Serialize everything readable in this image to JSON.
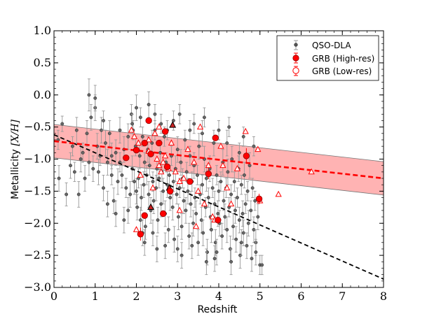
{
  "chart_data": {
    "type": "scatter",
    "xlabel": "Redshift",
    "ylabel_prefix": "Metallicity ",
    "ylabel_math": "[X/H]",
    "xlim": [
      0,
      8
    ],
    "ylim": [
      -3.0,
      1.0
    ],
    "xticks": [
      "0",
      "1",
      "2",
      "3",
      "4",
      "5",
      "6",
      "7",
      "8"
    ],
    "xtick_values": [
      0,
      1,
      2,
      3,
      4,
      5,
      6,
      7,
      8
    ],
    "yticks": [
      "1.0",
      "0.5",
      "0.0",
      "−0.5",
      "−1.0",
      "−1.5",
      "−2.0",
      "−2.5",
      "−3.0"
    ],
    "ytick_values": [
      1.0,
      0.5,
      0.0,
      -0.5,
      -1.0,
      -1.5,
      -2.0,
      -2.5,
      -3.0
    ],
    "legend": {
      "position": "top-right",
      "entries": [
        "QSO-DLA",
        "GRB (High-res)",
        "GRB (Low-res)"
      ]
    },
    "colors": {
      "qso": "#444444",
      "qso_err": "#999999",
      "grb": "#ff0000",
      "band": "#ff9999",
      "qso_fit": "#000000",
      "grb_fit": "#ff0000"
    },
    "grb_fit": {
      "x": [
        0,
        8
      ],
      "y": [
        -0.72,
        -1.3
      ],
      "band_halfwidth": 0.26
    },
    "qso_fit": {
      "x": [
        0,
        8
      ],
      "y": [
        -0.62,
        -2.87
      ]
    },
    "qso_dla": [
      [
        0.1,
        -0.7,
        0.15
      ],
      [
        0.12,
        -1.3,
        0.2
      ],
      [
        0.2,
        -0.45,
        0.12
      ],
      [
        0.3,
        -1.55,
        0.18
      ],
      [
        0.4,
        -1.1,
        0.2
      ],
      [
        0.45,
        -0.8,
        0.15
      ],
      [
        0.5,
        -1.2,
        0.15
      ],
      [
        0.55,
        -0.55,
        0.2
      ],
      [
        0.6,
        -1.55,
        0.2
      ],
      [
        0.65,
        -1.0,
        0.2
      ],
      [
        0.7,
        -0.9,
        0.15
      ],
      [
        0.75,
        -1.3,
        0.2
      ],
      [
        0.8,
        -0.6,
        0.2
      ],
      [
        0.85,
        -1.05,
        0.2
      ],
      [
        0.9,
        -0.35,
        0.2
      ],
      [
        0.95,
        -1.15,
        0.2
      ],
      [
        1.0,
        -0.2,
        0.2
      ],
      [
        1.05,
        -0.8,
        0.2
      ],
      [
        1.08,
        -1.2,
        0.2
      ],
      [
        1.12,
        -0.95,
        0.15
      ],
      [
        1.15,
        -0.55,
        0.2
      ],
      [
        1.2,
        -0.4,
        0.15
      ],
      [
        1.25,
        -0.75,
        0.2
      ],
      [
        1.3,
        -1.05,
        0.2
      ],
      [
        1.35,
        -0.6,
        0.2
      ],
      [
        1.4,
        -1.25,
        0.15
      ],
      [
        1.45,
        -1.65,
        0.2
      ],
      [
        1.5,
        -0.9,
        0.2
      ],
      [
        1.55,
        -1.35,
        0.2
      ],
      [
        1.6,
        -1.05,
        0.15
      ],
      [
        1.65,
        -1.25,
        0.2
      ],
      [
        1.7,
        -0.85,
        0.2
      ],
      [
        1.75,
        -1.45,
        0.15
      ],
      [
        1.8,
        -0.65,
        0.2
      ],
      [
        1.85,
        -1.55,
        0.2
      ],
      [
        1.88,
        -0.3,
        0.15
      ],
      [
        1.9,
        -1.15,
        0.2
      ],
      [
        1.92,
        -0.55,
        0.15
      ],
      [
        1.95,
        -1.35,
        0.2
      ],
      [
        1.98,
        -0.8,
        0.15
      ],
      [
        2.0,
        -1.5,
        0.2
      ],
      [
        2.02,
        -1.75,
        0.2
      ],
      [
        2.05,
        -1.3,
        0.15
      ],
      [
        2.08,
        -0.95,
        0.2
      ],
      [
        2.1,
        -1.95,
        0.2
      ],
      [
        2.12,
        -1.6,
        0.2
      ],
      [
        2.15,
        -0.65,
        0.15
      ],
      [
        2.18,
        -1.4,
        0.2
      ],
      [
        2.2,
        -1.05,
        0.15
      ],
      [
        2.22,
        -2.05,
        0.2
      ],
      [
        2.25,
        -1.25,
        0.15
      ],
      [
        2.28,
        -0.85,
        0.2
      ],
      [
        2.3,
        -1.55,
        0.2
      ],
      [
        2.32,
        -1.1,
        0.15
      ],
      [
        2.35,
        -1.8,
        0.2
      ],
      [
        2.38,
        -0.75,
        0.2
      ],
      [
        2.4,
        -1.35,
        0.15
      ],
      [
        2.42,
        -1.65,
        0.2
      ],
      [
        2.45,
        -0.55,
        0.15
      ],
      [
        2.48,
        -1.45,
        0.2
      ],
      [
        2.5,
        -1.15,
        0.15
      ],
      [
        2.52,
        -1.95,
        0.2
      ],
      [
        2.55,
        -1.3,
        0.15
      ],
      [
        2.58,
        -0.9,
        0.2
      ],
      [
        2.6,
        -1.7,
        0.2
      ],
      [
        2.62,
        -1.2,
        0.15
      ],
      [
        2.65,
        -1.5,
        0.2
      ],
      [
        2.68,
        -0.65,
        0.15
      ],
      [
        2.7,
        -1.85,
        0.2
      ],
      [
        2.72,
        -1.05,
        0.15
      ],
      [
        2.75,
        -1.4,
        0.2
      ],
      [
        2.78,
        -2.1,
        0.2
      ],
      [
        2.8,
        -1.25,
        0.15
      ],
      [
        2.82,
        -1.6,
        0.2
      ],
      [
        2.85,
        -0.95,
        0.15
      ],
      [
        2.88,
        -1.75,
        0.2
      ],
      [
        2.9,
        -1.35,
        0.15
      ],
      [
        2.92,
        -2.25,
        0.2
      ],
      [
        2.95,
        -1.15,
        0.2
      ],
      [
        2.98,
        -1.55,
        0.15
      ],
      [
        3.0,
        -0.85,
        0.2
      ],
      [
        3.02,
        -1.9,
        0.2
      ],
      [
        3.05,
        -1.45,
        0.15
      ],
      [
        3.08,
        -1.05,
        0.2
      ],
      [
        3.1,
        -2.05,
        0.2
      ],
      [
        3.12,
        -1.3,
        0.15
      ],
      [
        3.15,
        -1.65,
        0.2
      ],
      [
        3.18,
        -0.7,
        0.15
      ],
      [
        3.2,
        -1.8,
        0.2
      ],
      [
        3.22,
        -1.2,
        0.15
      ],
      [
        3.25,
        -1.5,
        0.2
      ],
      [
        3.28,
        -2.2,
        0.2
      ],
      [
        3.3,
        -0.95,
        0.15
      ],
      [
        3.32,
        -1.7,
        0.2
      ],
      [
        3.35,
        -1.35,
        0.15
      ],
      [
        3.38,
        -2.0,
        0.2
      ],
      [
        3.4,
        -1.1,
        0.2
      ],
      [
        3.42,
        -1.6,
        0.15
      ],
      [
        3.45,
        -1.85,
        0.2
      ],
      [
        3.48,
        -1.25,
        0.15
      ],
      [
        3.5,
        -2.3,
        0.2
      ],
      [
        3.52,
        -0.8,
        0.2
      ],
      [
        3.55,
        -1.55,
        0.15
      ],
      [
        3.58,
        -1.95,
        0.2
      ],
      [
        3.6,
        -1.4,
        0.15
      ],
      [
        3.62,
        -2.15,
        0.2
      ],
      [
        3.65,
        -1.0,
        0.2
      ],
      [
        3.68,
        -1.75,
        0.15
      ],
      [
        3.7,
        -1.3,
        0.2
      ],
      [
        3.72,
        -2.45,
        0.2
      ],
      [
        3.75,
        -1.6,
        0.15
      ],
      [
        3.78,
        -1.15,
        0.2
      ],
      [
        3.8,
        -1.9,
        0.2
      ],
      [
        3.82,
        -2.1,
        0.2
      ],
      [
        3.85,
        -1.45,
        0.15
      ],
      [
        3.88,
        -0.75,
        0.2
      ],
      [
        3.9,
        -1.7,
        0.2
      ],
      [
        3.92,
        -2.3,
        0.2
      ],
      [
        3.95,
        -1.25,
        0.15
      ],
      [
        3.98,
        -1.85,
        0.2
      ],
      [
        4.0,
        -1.5,
        0.15
      ],
      [
        4.02,
        -2.0,
        0.2
      ],
      [
        4.05,
        -1.35,
        0.15
      ],
      [
        4.08,
        -2.2,
        0.2
      ],
      [
        4.1,
        -1.05,
        0.2
      ],
      [
        4.12,
        -1.65,
        0.15
      ],
      [
        4.15,
        -1.9,
        0.2
      ],
      [
        4.18,
        -1.45,
        0.15
      ],
      [
        4.2,
        -2.1,
        0.2
      ],
      [
        4.22,
        -1.2,
        0.2
      ],
      [
        4.25,
        -1.75,
        0.15
      ],
      [
        4.28,
        -2.4,
        0.2
      ],
      [
        4.3,
        -1.55,
        0.15
      ],
      [
        4.32,
        -1.0,
        0.2
      ],
      [
        4.35,
        -2.05,
        0.2
      ],
      [
        4.38,
        -1.35,
        0.15
      ],
      [
        4.4,
        -1.8,
        0.2
      ],
      [
        4.42,
        -2.25,
        0.2
      ],
      [
        4.45,
        -1.6,
        0.15
      ],
      [
        4.48,
        -1.15,
        0.2
      ],
      [
        4.5,
        -1.95,
        0.2
      ],
      [
        4.52,
        -2.5,
        0.2
      ],
      [
        4.55,
        -1.4,
        0.15
      ],
      [
        4.58,
        -1.85,
        0.2
      ],
      [
        4.6,
        -2.15,
        0.2
      ],
      [
        4.62,
        -1.25,
        0.2
      ],
      [
        4.65,
        -1.7,
        0.15
      ],
      [
        4.68,
        -2.35,
        0.2
      ],
      [
        4.7,
        -1.5,
        0.15
      ],
      [
        4.72,
        -2.0,
        0.2
      ],
      [
        4.75,
        -1.1,
        0.2
      ],
      [
        4.78,
        -1.8,
        0.15
      ],
      [
        4.8,
        -2.55,
        0.2
      ],
      [
        4.82,
        -1.45,
        0.15
      ],
      [
        4.85,
        -2.1,
        0.2
      ],
      [
        4.88,
        -1.65,
        0.15
      ],
      [
        4.9,
        -2.3,
        0.2
      ],
      [
        4.95,
        -1.9,
        0.2
      ],
      [
        5.0,
        -2.65,
        0.15
      ],
      [
        5.05,
        -2.65,
        0.15
      ],
      [
        1.4,
        -0.95,
        0.2
      ],
      [
        1.6,
        -0.55,
        0.2
      ],
      [
        1.7,
        -1.95,
        0.2
      ],
      [
        1.9,
        -0.45,
        0.15
      ],
      [
        2.1,
        -0.35,
        0.15
      ],
      [
        2.2,
        -2.3,
        0.2
      ],
      [
        2.4,
        -2.15,
        0.2
      ],
      [
        2.6,
        -0.45,
        0.15
      ],
      [
        2.7,
        -2.35,
        0.2
      ],
      [
        3.0,
        -2.4,
        0.2
      ],
      [
        3.3,
        -0.55,
        0.15
      ],
      [
        3.6,
        -0.6,
        0.2
      ],
      [
        3.9,
        -2.55,
        0.2
      ],
      [
        4.2,
        -0.75,
        0.2
      ],
      [
        4.5,
        -0.9,
        0.15
      ],
      [
        1.0,
        -0.05,
        0.2
      ],
      [
        0.85,
        0.0,
        0.25
      ],
      [
        1.3,
        -1.7,
        0.2
      ],
      [
        1.8,
        -1.8,
        0.2
      ],
      [
        2.0,
        -0.2,
        0.2
      ],
      [
        2.3,
        -0.15,
        0.2
      ],
      [
        2.5,
        -2.4,
        0.2
      ],
      [
        2.9,
        -0.4,
        0.15
      ],
      [
        3.1,
        -2.5,
        0.2
      ],
      [
        3.4,
        -0.45,
        0.15
      ],
      [
        3.7,
        -2.6,
        0.2
      ],
      [
        4.0,
        -0.55,
        0.15
      ],
      [
        4.3,
        -2.6,
        0.2
      ],
      [
        4.6,
        -0.65,
        0.15
      ],
      [
        4.9,
        -2.45,
        0.2
      ],
      [
        1.2,
        -1.45,
        0.2
      ],
      [
        1.5,
        -1.85,
        0.2
      ],
      [
        2.15,
        -2.15,
        0.2
      ],
      [
        2.45,
        -0.3,
        0.15
      ],
      [
        2.75,
        -0.55,
        0.15
      ],
      [
        3.05,
        -0.3,
        0.15
      ],
      [
        3.35,
        -2.35,
        0.2
      ],
      [
        3.65,
        -0.35,
        0.15
      ],
      [
        3.95,
        -2.45,
        0.2
      ],
      [
        4.25,
        -0.5,
        0.15
      ],
      [
        4.55,
        -2.3,
        0.2
      ],
      [
        4.85,
        -0.8,
        0.15
      ]
    ],
    "grb_high": [
      [
        1.75,
        -0.98
      ],
      [
        2.0,
        -0.86
      ],
      [
        2.2,
        -0.75
      ],
      [
        2.3,
        -0.4
      ],
      [
        2.35,
        -0.92
      ],
      [
        2.55,
        -0.75
      ],
      [
        2.7,
        -0.57
      ],
      [
        2.75,
        -1.12
      ],
      [
        2.82,
        -1.5
      ],
      [
        3.3,
        -1.35
      ],
      [
        3.75,
        -1.23
      ],
      [
        3.92,
        -0.67
      ],
      [
        3.98,
        -1.95
      ],
      [
        4.67,
        -0.95
      ],
      [
        4.98,
        -1.62
      ],
      [
        2.1,
        -2.17
      ],
      [
        2.2,
        -1.88
      ],
      [
        2.65,
        -1.85
      ]
    ],
    "grb_high_errs": [
      [
        4.98,
        -1.62,
        0.08
      ],
      [
        3.98,
        -1.95,
        0.06
      ],
      [
        3.75,
        -1.23,
        0.08
      ],
      [
        4.67,
        -0.95,
        0.12
      ],
      [
        2.1,
        -2.17,
        0.1
      ]
    ],
    "grb_low": [
      [
        1.88,
        -0.55
      ],
      [
        1.95,
        -0.65
      ],
      [
        2.05,
        -0.75
      ],
      [
        2.1,
        -1.25
      ],
      [
        2.3,
        -0.88
      ],
      [
        2.45,
        -0.6
      ],
      [
        2.5,
        -1.0
      ],
      [
        2.55,
        -1.1
      ],
      [
        2.6,
        -1.2
      ],
      [
        2.65,
        -1.05
      ],
      [
        2.7,
        -0.95
      ],
      [
        2.78,
        -1.15
      ],
      [
        2.85,
        -0.75
      ],
      [
        2.95,
        -1.2
      ],
      [
        3.05,
        -1.8
      ],
      [
        3.15,
        -1.3
      ],
      [
        3.25,
        -0.85
      ],
      [
        3.4,
        -1.05
      ],
      [
        3.5,
        -1.5
      ],
      [
        3.55,
        -0.5
      ],
      [
        3.65,
        -1.7
      ],
      [
        3.75,
        -1.1
      ],
      [
        3.85,
        -1.9
      ],
      [
        4.05,
        -0.8
      ],
      [
        4.1,
        -1.1
      ],
      [
        4.2,
        -1.45
      ],
      [
        4.3,
        -1.7
      ],
      [
        4.45,
        -1.15
      ],
      [
        4.65,
        -0.57
      ],
      [
        4.95,
        -0.85
      ],
      [
        5.0,
        -1.65
      ],
      [
        5.45,
        -1.55
      ],
      [
        6.25,
        -1.2
      ],
      [
        2.0,
        -2.1
      ],
      [
        2.4,
        -1.45
      ],
      [
        3.45,
        -2.05
      ],
      [
        2.3,
        -0.7
      ],
      [
        2.55,
        -0.5
      ],
      [
        3.05,
        -1.35
      ],
      [
        3.9,
        -1.95
      ]
    ],
    "grb_black_triangles": [
      [
        2.88,
        -0.47
      ],
      [
        2.35,
        -1.75
      ],
      [
        2.8,
        -1.45
      ]
    ]
  }
}
